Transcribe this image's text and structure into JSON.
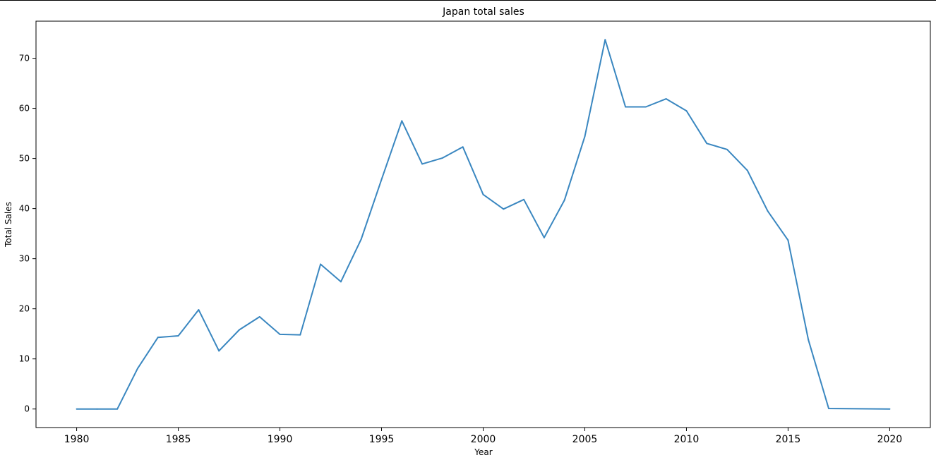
{
  "chart_data": {
    "type": "line",
    "title": "Japan total sales",
    "xlabel": "Year",
    "ylabel": "Total Sales",
    "xlim": [
      1978,
      2022
    ],
    "ylim": [
      -3.7,
      77.4
    ],
    "xticks": [
      1980,
      1985,
      1990,
      1995,
      2000,
      2005,
      2010,
      2015,
      2020
    ],
    "yticks": [
      0,
      10,
      20,
      30,
      40,
      50,
      60,
      70
    ],
    "grid": false,
    "colors": {
      "line": "#3a87c0",
      "axes": "#000000"
    },
    "series": [
      {
        "x": [
          1980,
          1981,
          1982,
          1983,
          1984,
          1985,
          1986,
          1987,
          1988,
          1989,
          1990,
          1991,
          1992,
          1993,
          1994,
          1995,
          1996,
          1997,
          1998,
          1999,
          2000,
          2001,
          2002,
          2003,
          2004,
          2005,
          2006,
          2007,
          2008,
          2009,
          2010,
          2011,
          2012,
          2013,
          2014,
          2015,
          2016,
          2017,
          2020
        ],
        "y": [
          0,
          0,
          0,
          8.1,
          14.3,
          14.6,
          19.8,
          11.6,
          15.8,
          18.4,
          14.9,
          14.8,
          28.9,
          25.4,
          33.9,
          45.8,
          57.5,
          48.9,
          50.1,
          52.3,
          42.8,
          39.9,
          41.8,
          34.2,
          41.7,
          54.4,
          73.7,
          60.3,
          60.3,
          61.9,
          59.5,
          53.0,
          51.8,
          47.6,
          39.5,
          33.7,
          13.8,
          0.1,
          0
        ]
      }
    ]
  }
}
